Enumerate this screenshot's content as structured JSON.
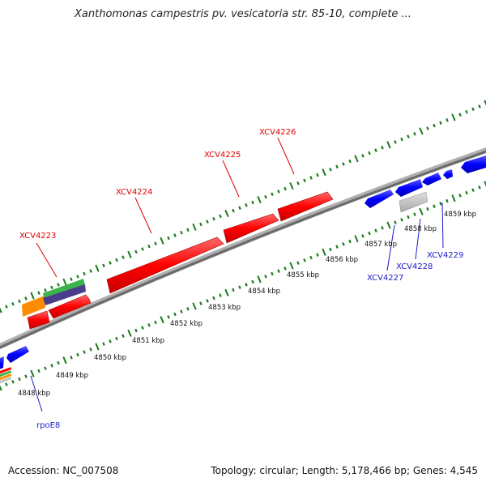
{
  "header": {
    "title": "Xanthomonas campestris pv. vesicatoria str. 85-10, complete ..."
  },
  "footer": {
    "accession": "Accession: NC_007508",
    "summary": "Topology: circular; Length: 5,178,466 bp; Genes: 4,545"
  },
  "colors": {
    "forward_gene": "#ff0000",
    "reverse_gene": "#0000ff",
    "rna_gene": "#c0c0c0",
    "backbone": "#808080",
    "tick": "#1a7a1a",
    "label_forward": "#dd0000",
    "label_reverse": "#1a1ac8"
  },
  "scale": {
    "ticks": [
      {
        "label": "4848 kbp"
      },
      {
        "label": "4849 kbp"
      },
      {
        "label": "4850 kbp"
      },
      {
        "label": "4851 kbp"
      },
      {
        "label": "4852 kbp"
      },
      {
        "label": "4853 kbp"
      },
      {
        "label": "4854 kbp"
      },
      {
        "label": "4855 kbp"
      },
      {
        "label": "4856 kbp"
      },
      {
        "label": "4857 kbp"
      },
      {
        "label": "4858 kbp"
      },
      {
        "label": "4859 kbp"
      }
    ]
  },
  "genes": {
    "forward_labels": [
      "XCV4223",
      "XCV4224",
      "XCV4225",
      "XCV4226"
    ],
    "reverse_labels": [
      "rpoE8",
      "XCV4227",
      "XCV4228",
      "XCV4229"
    ]
  }
}
